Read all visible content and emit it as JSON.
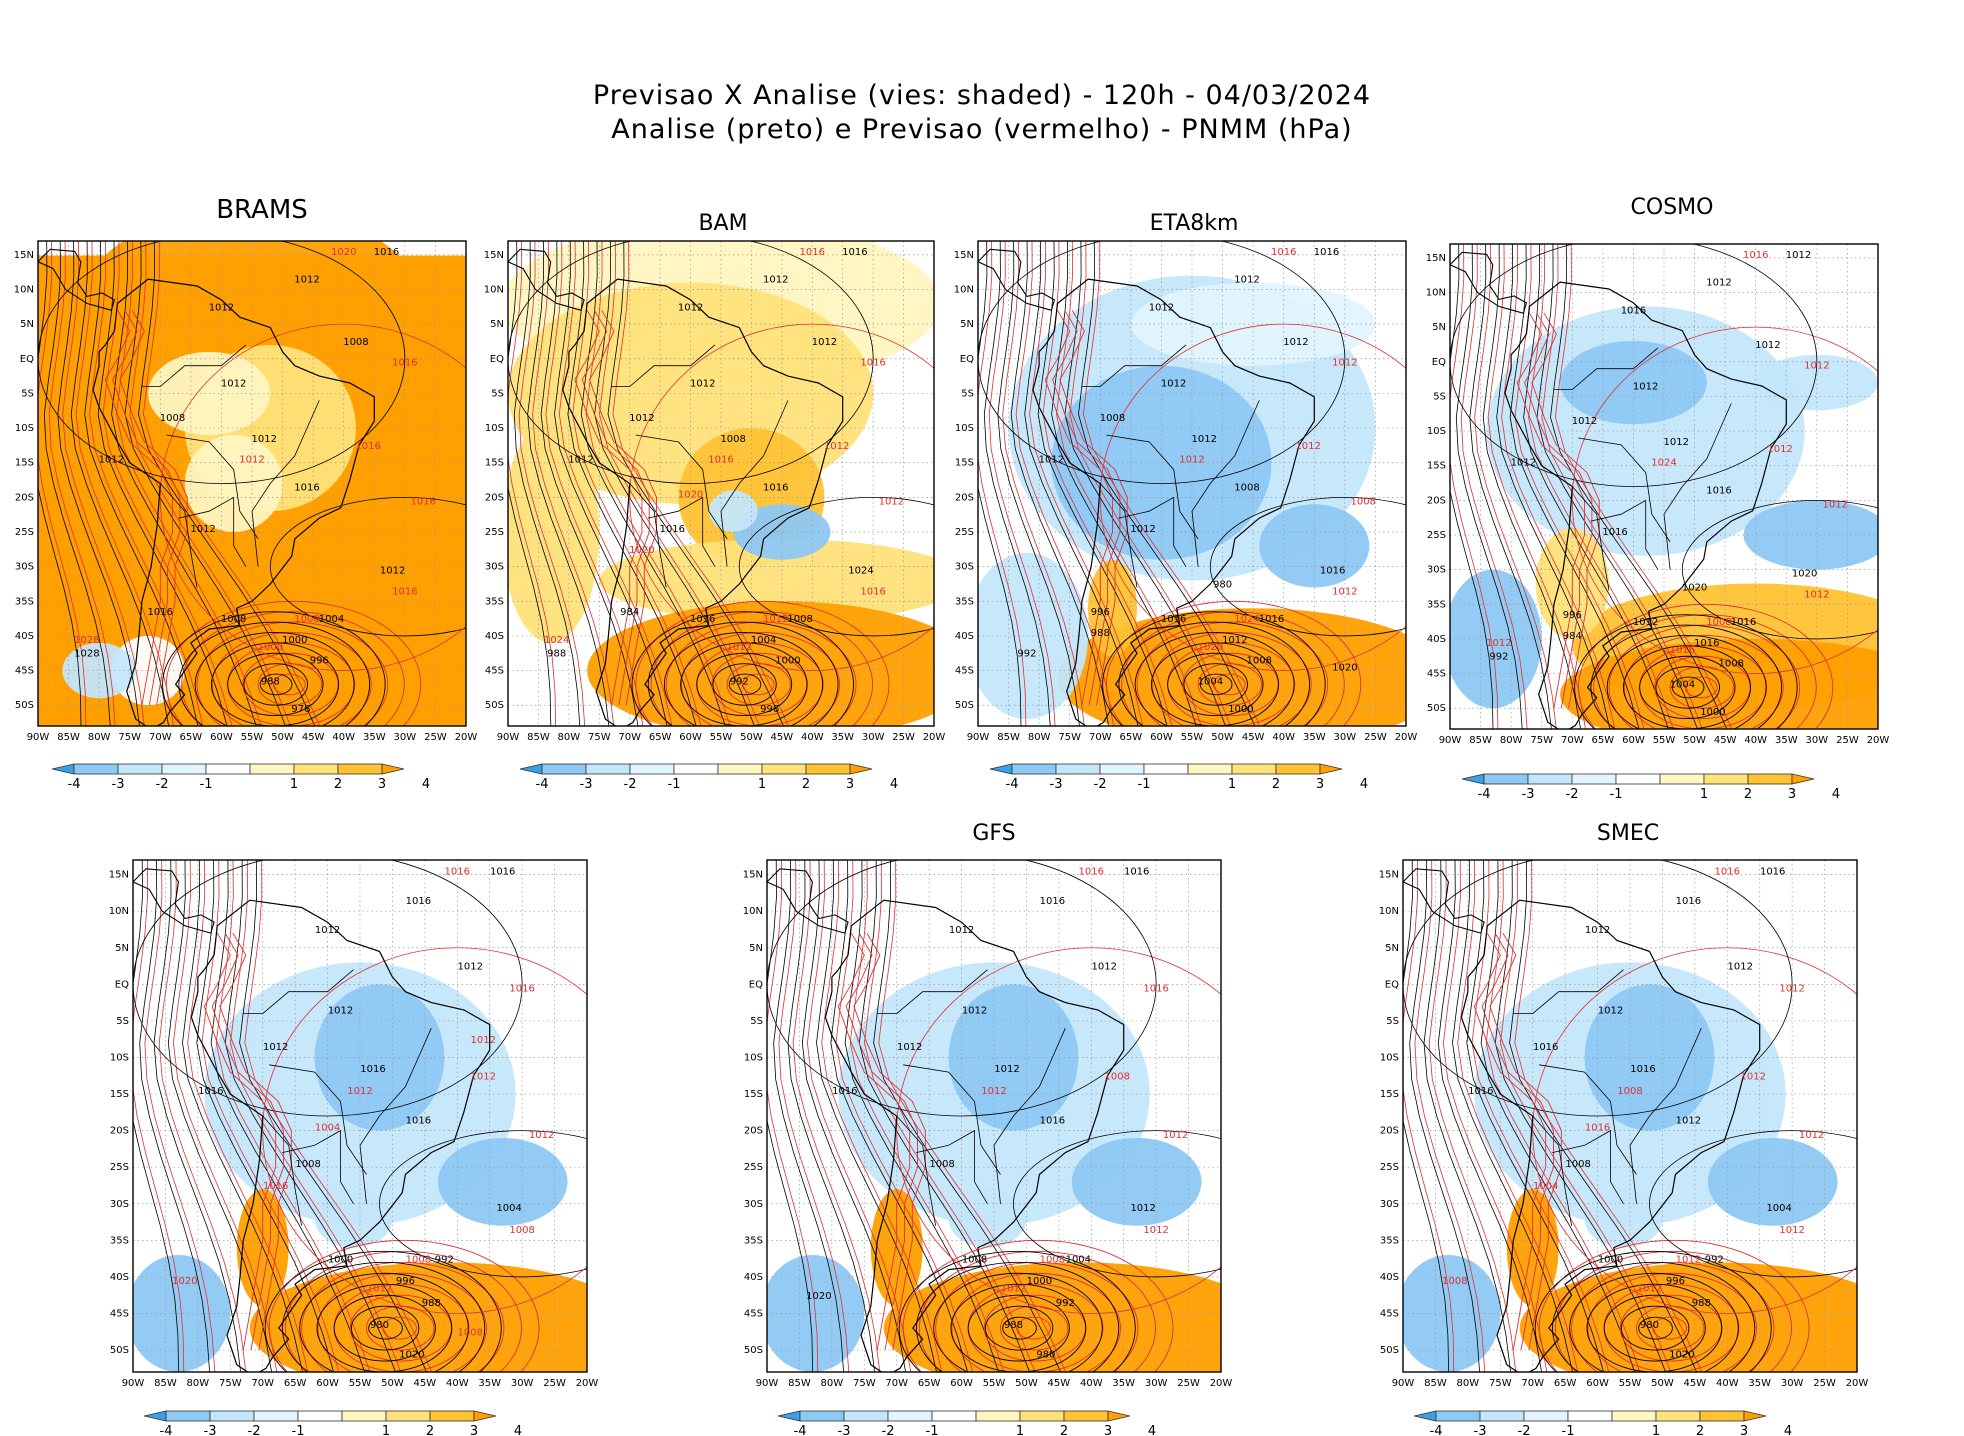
{
  "header": {
    "line1": "Previsao X Analise (vies: shaded) - 120h - 04/03/2024",
    "line2": "Analise (preto) e Previsao (vermelho) - PNMM (hPa)"
  },
  "colors": {
    "neg4": "#3aa0e8",
    "neg3": "#8ec8f4",
    "neg2": "#c4e6fb",
    "neg1": "#e2f4fe",
    "neutral": "#ffffff",
    "pos1": "#fff6c0",
    "pos2": "#ffe27a",
    "pos3": "#ffc233",
    "pos4": "#ff9f00",
    "analysis_line": "#000000",
    "forecast_line": "#e03030",
    "grid": "#9a9a9a"
  },
  "axes": {
    "lon_labels": [
      "90W",
      "85W",
      "80W",
      "75W",
      "70W",
      "65W",
      "60W",
      "55W",
      "50W",
      "45W",
      "40W",
      "35W",
      "30W",
      "25W",
      "20W"
    ],
    "lat_labels": [
      "15N",
      "10N",
      "5N",
      "EQ",
      "5S",
      "10S",
      "15S",
      "20S",
      "25S",
      "30S",
      "35S",
      "40S",
      "45S",
      "50S"
    ]
  },
  "colorbar": {
    "labels": [
      "-4",
      "-3",
      "-2",
      "-1",
      "1",
      "2",
      "3",
      "4"
    ]
  },
  "panels": [
    {
      "name": "BRAMS",
      "bias": "positive",
      "labels_black": [
        "1016",
        "1012",
        "1012",
        "1008",
        "1012",
        "1008",
        "1012",
        "1012",
        "1016",
        "1012",
        "1012",
        "1008",
        "1004",
        "1000",
        "996",
        "988",
        "976",
        "1028",
        "1016"
      ],
      "labels_red": [
        "1020",
        "1016",
        "1016",
        "1016",
        "1012",
        "1016",
        "1008",
        "1000",
        "1028"
      ]
    },
    {
      "name": "BAM",
      "bias": "positive",
      "labels_black": [
        "1016",
        "1012",
        "1012",
        "1012",
        "1012",
        "1012",
        "1008",
        "1012",
        "1016",
        "1016",
        "1024",
        "1016",
        "1008",
        "1004",
        "1000",
        "992",
        "996",
        "988",
        "984"
      ],
      "labels_red": [
        "1016",
        "1016",
        "1012",
        "1012",
        "1016",
        "1016",
        "1012",
        "1012",
        "1024",
        "1020",
        "1020"
      ]
    },
    {
      "name": "ETA8km",
      "bias": "negative",
      "labels_black": [
        "1016",
        "1012",
        "1012",
        "1012",
        "1012",
        "1008",
        "1012",
        "1012",
        "1008",
        "1012",
        "1016",
        "1016",
        "1016",
        "1012",
        "1008",
        "1004",
        "1000",
        "992",
        "996",
        "988",
        "980",
        "1020"
      ],
      "labels_red": [
        "1016",
        "1012",
        "1012",
        "1008",
        "1012",
        "1012",
        "1024",
        "1020"
      ]
    },
    {
      "name": "COSMO",
      "bias": "negative",
      "labels_black": [
        "1012",
        "1012",
        "1016",
        "1012",
        "1012",
        "1012",
        "1012",
        "1012",
        "1016",
        "1016",
        "1020",
        "1012",
        "1016",
        "1016",
        "1008",
        "1004",
        "1000",
        "992",
        "996",
        "984",
        "1020"
      ],
      "labels_red": [
        "1016",
        "1012",
        "1012",
        "1012",
        "1024",
        "1012",
        "1008",
        "1016",
        "1012"
      ]
    },
    {
      "name": "",
      "bias": "negative",
      "labels_black": [
        "1016",
        "1016",
        "1012",
        "1012",
        "1012",
        "1012",
        "1016",
        "1016",
        "1016",
        "1008",
        "1004",
        "1000",
        "992",
        "996",
        "988",
        "980",
        "1020"
      ],
      "labels_red": [
        "1016",
        "1016",
        "1012",
        "1012",
        "1012",
        "1008",
        "1008",
        "1012",
        "1020",
        "1016",
        "1004",
        "1008",
        "1012"
      ]
    },
    {
      "name": "GFS",
      "bias": "negative",
      "labels_black": [
        "1016",
        "1016",
        "1012",
        "1012",
        "1012",
        "1012",
        "1012",
        "1016",
        "1016",
        "1008",
        "1012",
        "1008",
        "1004",
        "1000",
        "992",
        "988",
        "980",
        "1020"
      ],
      "labels_red": [
        "1016",
        "1016",
        "1008",
        "1012",
        "1012",
        "1012",
        "1008",
        "1012"
      ]
    },
    {
      "name": "SMEC",
      "bias": "negative",
      "labels_black": [
        "1016",
        "1016",
        "1012",
        "1012",
        "1012",
        "1016",
        "1016",
        "1016",
        "1012",
        "1008",
        "1004",
        "1000",
        "992",
        "996",
        "988",
        "980",
        "1020"
      ],
      "labels_red": [
        "1016",
        "1012",
        "1012",
        "1012",
        "1008",
        "1012",
        "1012",
        "1012",
        "1008",
        "1004",
        "1016"
      ]
    }
  ]
}
